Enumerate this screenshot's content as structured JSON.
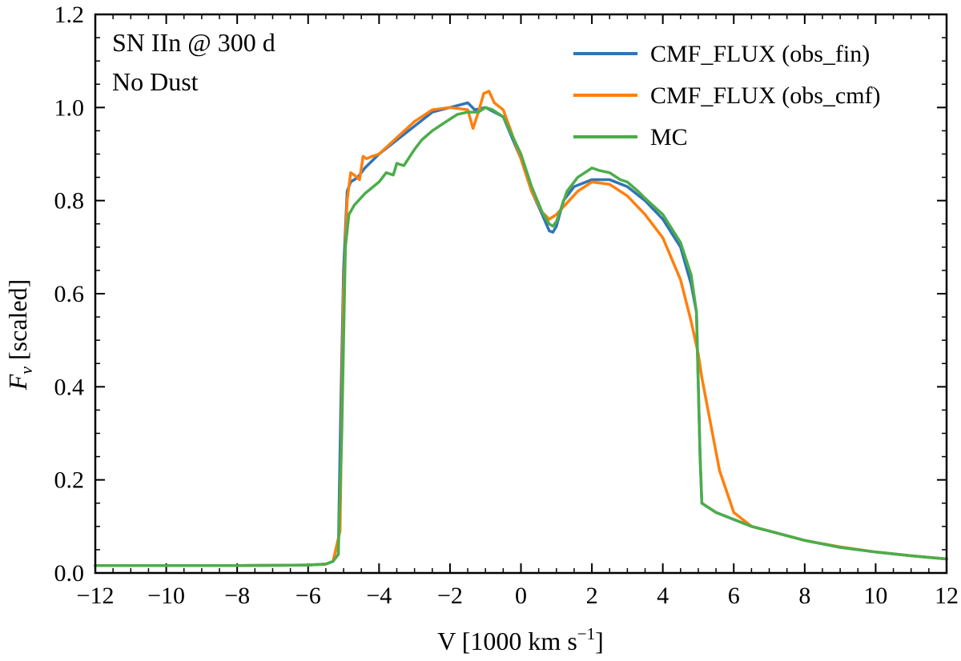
{
  "chart_data": {
    "type": "line",
    "xlabel": "V [1000 km s",
    "xlabel_sup": "−1",
    "xlabel_close": "]",
    "ylabel": "F",
    "ylabel_sub": "ν",
    "ylabel_rest": " [scaled]",
    "xlim": [
      -12,
      12
    ],
    "ylim": [
      0,
      1.2
    ],
    "x_ticks": [
      -12,
      -10,
      -8,
      -6,
      -4,
      -2,
      0,
      2,
      4,
      6,
      8,
      10,
      12
    ],
    "x_tick_labels": [
      "−12",
      "−10",
      "−8",
      "−6",
      "−4",
      "−2",
      "0",
      "2",
      "4",
      "6",
      "8",
      "10",
      "12"
    ],
    "y_ticks": [
      0,
      0.2,
      0.4,
      0.6,
      0.8,
      1.0,
      1.2
    ],
    "y_tick_labels": [
      "0.0",
      "0.2",
      "0.4",
      "0.6",
      "0.8",
      "1.0",
      "1.2"
    ],
    "x_minor_step": 0.5,
    "y_minor_step": 0.05,
    "annotations": [
      "SN IIn @ 300 d",
      "No Dust"
    ],
    "legend_position": "top-right",
    "series": [
      {
        "name": "CMF_FLUX (obs_fin)",
        "color": "#3274b5",
        "x": [
          -12,
          -8,
          -6,
          -5.5,
          -5.3,
          -5.15,
          -5.08,
          -5.0,
          -4.9,
          -4.8,
          -4.6,
          -4.4,
          -4.0,
          -3.5,
          -3.0,
          -2.5,
          -2.0,
          -1.5,
          -1.3,
          -1.0,
          -0.5,
          0.0,
          0.3,
          0.6,
          0.8,
          0.9,
          1.0,
          1.2,
          1.5,
          2.0,
          2.5,
          3.0,
          3.5,
          4.0,
          4.5,
          4.8,
          4.95,
          5.0,
          5.05,
          5.1,
          5.5,
          6.0,
          6.5,
          7.0,
          8.0,
          9.0,
          10.0,
          11.0,
          12.0
        ],
        "y": [
          0.016,
          0.016,
          0.017,
          0.019,
          0.025,
          0.04,
          0.35,
          0.65,
          0.82,
          0.84,
          0.85,
          0.87,
          0.9,
          0.93,
          0.96,
          0.99,
          1.0,
          1.01,
          0.995,
          1.0,
          0.98,
          0.89,
          0.82,
          0.77,
          0.735,
          0.732,
          0.745,
          0.8,
          0.83,
          0.845,
          0.845,
          0.83,
          0.8,
          0.76,
          0.7,
          0.62,
          0.56,
          0.4,
          0.25,
          0.15,
          0.13,
          0.115,
          0.1,
          0.09,
          0.07,
          0.055,
          0.045,
          0.037,
          0.03
        ]
      },
      {
        "name": "CMF_FLUX (obs_cmf)",
        "color": "#ff7f0e",
        "x": [
          -12,
          -8,
          -6,
          -5.5,
          -5.3,
          -5.1,
          -5.0,
          -4.9,
          -4.8,
          -4.7,
          -4.55,
          -4.45,
          -4.35,
          -4.2,
          -4.0,
          -3.5,
          -3.0,
          -2.5,
          -2.0,
          -1.5,
          -1.35,
          -1.2,
          -1.05,
          -0.9,
          -0.75,
          -0.5,
          0.0,
          0.3,
          0.6,
          0.8,
          1.0,
          1.3,
          1.6,
          2.0,
          2.5,
          3.0,
          3.5,
          4.0,
          4.5,
          4.8,
          5.0,
          5.1,
          5.3,
          5.6,
          6.0,
          6.5,
          7.0,
          8.0,
          9.0,
          10.0,
          11.0,
          12.0
        ],
        "y": [
          0.016,
          0.016,
          0.017,
          0.019,
          0.025,
          0.09,
          0.6,
          0.8,
          0.86,
          0.855,
          0.845,
          0.895,
          0.89,
          0.895,
          0.9,
          0.935,
          0.97,
          0.995,
          1.0,
          0.995,
          0.955,
          0.99,
          1.03,
          1.035,
          1.01,
          0.995,
          0.89,
          0.82,
          0.775,
          0.76,
          0.77,
          0.795,
          0.82,
          0.84,
          0.835,
          0.81,
          0.77,
          0.72,
          0.63,
          0.54,
          0.47,
          0.42,
          0.34,
          0.22,
          0.13,
          0.1,
          0.09,
          0.07,
          0.056,
          0.045,
          0.037,
          0.03
        ]
      },
      {
        "name": "MC",
        "color": "#4cad4a",
        "x": [
          -12,
          -8,
          -6,
          -5.5,
          -5.3,
          -5.15,
          -5.05,
          -4.95,
          -4.85,
          -4.7,
          -4.4,
          -4.0,
          -3.8,
          -3.6,
          -3.5,
          -3.3,
          -3.0,
          -2.8,
          -2.5,
          -2.3,
          -2.0,
          -1.8,
          -1.5,
          -1.2,
          -1.0,
          -0.8,
          -0.5,
          0.0,
          0.3,
          0.6,
          0.8,
          0.9,
          1.0,
          1.3,
          1.6,
          1.8,
          2.0,
          2.2,
          2.5,
          2.8,
          3.0,
          3.3,
          3.5,
          4.0,
          4.5,
          4.8,
          4.95,
          5.0,
          5.05,
          5.1,
          5.5,
          6.0,
          6.5,
          7.0,
          8.0,
          9.0,
          10.0,
          11.0,
          12.0
        ],
        "y": [
          0.016,
          0.016,
          0.017,
          0.019,
          0.025,
          0.04,
          0.3,
          0.7,
          0.77,
          0.79,
          0.815,
          0.84,
          0.86,
          0.855,
          0.88,
          0.875,
          0.91,
          0.93,
          0.95,
          0.96,
          0.975,
          0.985,
          0.99,
          0.99,
          1.0,
          0.995,
          0.98,
          0.9,
          0.83,
          0.775,
          0.75,
          0.745,
          0.755,
          0.82,
          0.85,
          0.86,
          0.87,
          0.865,
          0.86,
          0.845,
          0.84,
          0.82,
          0.805,
          0.77,
          0.71,
          0.64,
          0.56,
          0.4,
          0.25,
          0.15,
          0.13,
          0.115,
          0.1,
          0.09,
          0.07,
          0.055,
          0.045,
          0.037,
          0.03
        ]
      }
    ]
  }
}
